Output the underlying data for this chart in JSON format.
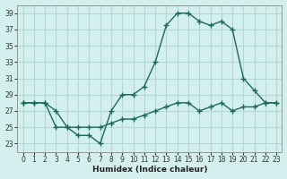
{
  "xlabel": "Humidex (Indice chaleur)",
  "background_color": "#d4f0ee",
  "grid_color": "#b0d8d4",
  "line_color": "#1a6b5a",
  "line1_x": [
    0,
    1,
    2,
    3,
    4,
    5,
    6,
    7,
    8,
    9,
    10,
    11,
    12,
    13,
    14,
    15,
    16,
    17,
    18,
    19,
    20,
    21,
    22,
    23
  ],
  "line1_y": [
    28,
    28,
    28,
    27,
    25,
    24,
    24,
    23,
    27,
    29,
    29,
    30,
    33,
    37.5,
    39,
    39,
    38,
    37.5,
    38,
    37,
    31,
    29.5,
    28,
    28
  ],
  "line2_x": [
    0,
    1,
    2,
    3,
    4,
    5,
    6,
    7,
    8,
    9,
    10,
    11,
    12,
    13,
    14,
    15,
    16,
    17,
    18,
    19,
    20,
    21,
    22,
    23
  ],
  "line2_y": [
    28,
    28,
    28,
    25,
    25,
    25,
    25,
    25,
    25.5,
    26,
    26,
    26.5,
    27,
    27.5,
    28,
    28,
    27,
    27.5,
    28,
    27,
    27.5,
    27.5,
    28,
    28
  ],
  "ylim": [
    22,
    40
  ],
  "xlim": [
    0,
    23
  ],
  "yticks": [
    23,
    25,
    27,
    29,
    31,
    33,
    35,
    37,
    39
  ],
  "xticks": [
    0,
    1,
    2,
    3,
    4,
    5,
    6,
    7,
    8,
    9,
    10,
    11,
    12,
    13,
    14,
    15,
    16,
    17,
    18,
    19,
    20,
    21,
    22,
    23
  ],
  "marker": "+",
  "marker_size": 4,
  "line_width": 1.0
}
